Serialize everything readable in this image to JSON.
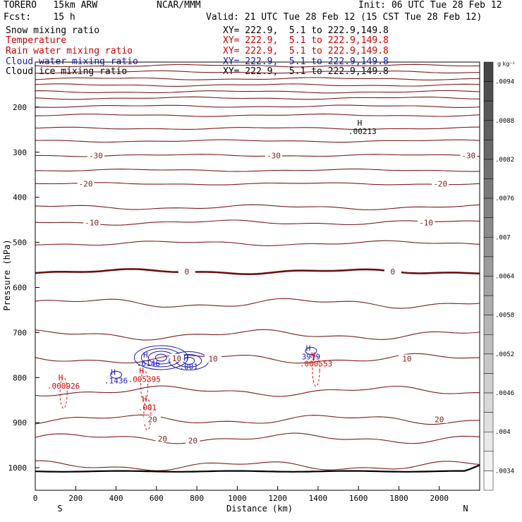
{
  "header": {
    "model": "TORERO   15km ARW",
    "center": "NCAR/MMM",
    "init": "Init: 06 UTC Tue 28 Feb 12",
    "fcst": "Fcst:    15 h",
    "valid": "Valid: 21 UTC Tue 28 Feb 12 (15 CST Tue 28 Feb 12)"
  },
  "fields": [
    {
      "name": "Snow mixing ratio",
      "xy": "XY= 222.9,  5.1 to 222.9,149.8",
      "color": "#000000"
    },
    {
      "name": "Temperature",
      "xy": "XY= 222.9,  5.1 to 222.9,149.8",
      "color": "#cc0000"
    },
    {
      "name": "Rain water mixing ratio",
      "xy": "XY= 222.9,  5.1 to 222.9,149.8",
      "color": "#cc0000"
    },
    {
      "name": "Cloud water mixing ratio",
      "xy": "XY= 222.9,  5.1 to 222.9,149.8",
      "color": "#1a1aaa"
    },
    {
      "name": "Cloud ice mixing ratio",
      "xy": "XY= 222.9,  5.1 to 222.9,149.8",
      "color": "#000000"
    }
  ],
  "colors": {
    "temperature": "#7a1e1e",
    "zero_isotherm": "#6b0f0f",
    "rain": "#dd0000",
    "cloud_water": "#1a1ab4",
    "snow": "#000000",
    "ground": "#000000"
  },
  "chart_data": {
    "type": "cross-section contour",
    "xlabel": "Distance (km)",
    "ylabel": "Pressure (hPa)",
    "xlim": [
      0,
      2200
    ],
    "ylim": [
      1050,
      100
    ],
    "xticks": [
      0,
      200,
      400,
      600,
      800,
      1000,
      1200,
      1400,
      1600,
      1800,
      2000
    ],
    "yticks": [
      200,
      300,
      400,
      500,
      600,
      700,
      800,
      900,
      1000
    ],
    "ends": {
      "left": "S",
      "right": "N"
    },
    "temperature_isotherms": [
      {
        "p": 108,
        "label": ""
      },
      {
        "p": 122,
        "label": ""
      },
      {
        "p": 137,
        "label": ""
      },
      {
        "p": 151,
        "label": ""
      },
      {
        "p": 166,
        "label": ""
      },
      {
        "p": 180,
        "label": ""
      },
      {
        "p": 198,
        "label": ""
      },
      {
        "p": 218,
        "label": ""
      },
      {
        "p": 247,
        "label": ""
      },
      {
        "p": 275,
        "label": ""
      },
      {
        "p": 307,
        "label": "-30",
        "label_x": [
          300,
          1180,
          2145
        ]
      },
      {
        "p": 340,
        "label": ""
      },
      {
        "p": 370,
        "label": "-20",
        "label_x": [
          250,
          2005
        ]
      },
      {
        "p": 422,
        "label": ""
      },
      {
        "p": 456,
        "label": "-10",
        "label_x": [
          280,
          1935
        ]
      },
      {
        "p": 502,
        "label": ""
      },
      {
        "p": 565,
        "label": "0",
        "label_x": [
          750,
          1770
        ]
      },
      {
        "p": 635,
        "label": ""
      },
      {
        "p": 705,
        "label": ""
      },
      {
        "p": 758,
        "label": "10",
        "label_x": [
          880,
          1840
        ]
      },
      {
        "p": 830,
        "label": ""
      },
      {
        "p": 893,
        "label": "20",
        "label_x": [
          580,
          2000
        ]
      },
      {
        "p": 935,
        "label": ""
      },
      {
        "p": 996,
        "label": ""
      }
    ],
    "extra_labels": [
      {
        "x": 700,
        "p": 757,
        "text": "10",
        "color": "temperature"
      },
      {
        "x": 780,
        "p": 940,
        "text": "20",
        "color": "temperature"
      },
      {
        "x": 630,
        "p": 936,
        "text": "20",
        "color": "temperature"
      }
    ],
    "highs": [
      {
        "x": 1620,
        "p": 247,
        "label": ".00213",
        "field": "snow"
      },
      {
        "x": 560,
        "p": 762,
        "label": ".6146",
        "field": "cloud_water"
      },
      {
        "x": 760,
        "p": 769,
        "label": ".001",
        "field": "cloud_water"
      },
      {
        "x": 1365,
        "p": 747,
        "label": "3919",
        "field": "cloud_water"
      },
      {
        "x": 400,
        "p": 800,
        "label": ".1436",
        "field": "cloud_water"
      },
      {
        "x": 540,
        "p": 797,
        "label": ".005395",
        "field": "rain"
      },
      {
        "x": 1390,
        "p": 763,
        "label": ".000553",
        "field": "rain"
      },
      {
        "x": 140,
        "p": 812,
        "label": ".000926",
        "field": "rain"
      },
      {
        "x": 555,
        "p": 860,
        "label": ".001",
        "field": "rain"
      }
    ],
    "colorbar": {
      "unit": "g kg⁻¹",
      "labels": [
        ".0094",
        ".0088",
        ".0082",
        ".0076",
        ".007",
        ".0064",
        ".0058",
        ".0052",
        ".0046",
        ".004",
        ".0034"
      ],
      "min": 0.0031,
      "max": 0.0097
    }
  }
}
